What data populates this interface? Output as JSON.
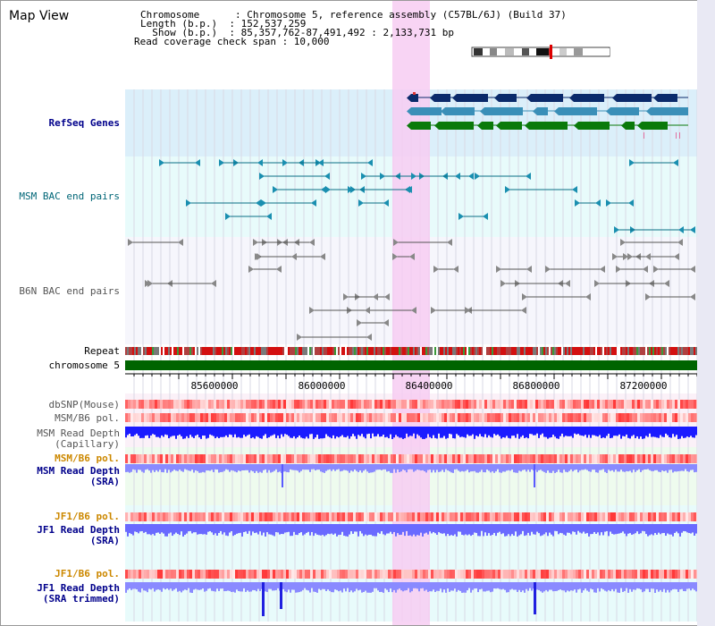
{
  "view_title": "Map View",
  "header": {
    "lines": [
      "Chromosome      : Chromosome 5, reference assembly (C57BL/6J) (Build 37)",
      "Length (b.p.)  : 152,537,259",
      "  Show (b.p.)  : 85,357,762-87,491,492 : 2,133,731 bp",
      "Read coverage check span : 10,000"
    ]
  },
  "tracks": {
    "refseq": "RefSeq Genes",
    "msm_bac": "MSM BAC end pairs",
    "b6n_bac": "B6N BAC end pairs",
    "repeat": "Repeat",
    "chromosome": "chromosome 5",
    "dbsnp": "dbSNP(Mouse)",
    "msm_b6_pol_1": "MSM/B6 pol.",
    "msm_read_depth_cap": [
      "MSM Read Depth",
      "(Capillary)"
    ],
    "msm_b6_pol_2": "MSM/B6 pol.",
    "msm_read_depth_sra": [
      "MSM Read Depth",
      "(SRA)"
    ],
    "jf1_b6_pol_1": "JF1/B6 pol.",
    "jf1_read_depth_sra": [
      "JF1 Read Depth",
      "(SRA)"
    ],
    "jf1_b6_pol_2": "JF1/B6 pol.",
    "jf1_read_depth_trim": [
      "JF1 Read Depth",
      "(SRA trimmed)"
    ]
  },
  "axis_ticks": [
    "85600000",
    "86000000",
    "86400000",
    "86800000",
    "87200000"
  ],
  "colors": {
    "refseq_label": "#00008b",
    "msm_label": "#006677",
    "b6n_label": "#555555",
    "pol_label": "#cc8800",
    "depth_label": "#00008b",
    "highlight": "#f7ccf2",
    "chromosome_bar": "#006400",
    "depth_bar": "#1b1bff"
  }
}
